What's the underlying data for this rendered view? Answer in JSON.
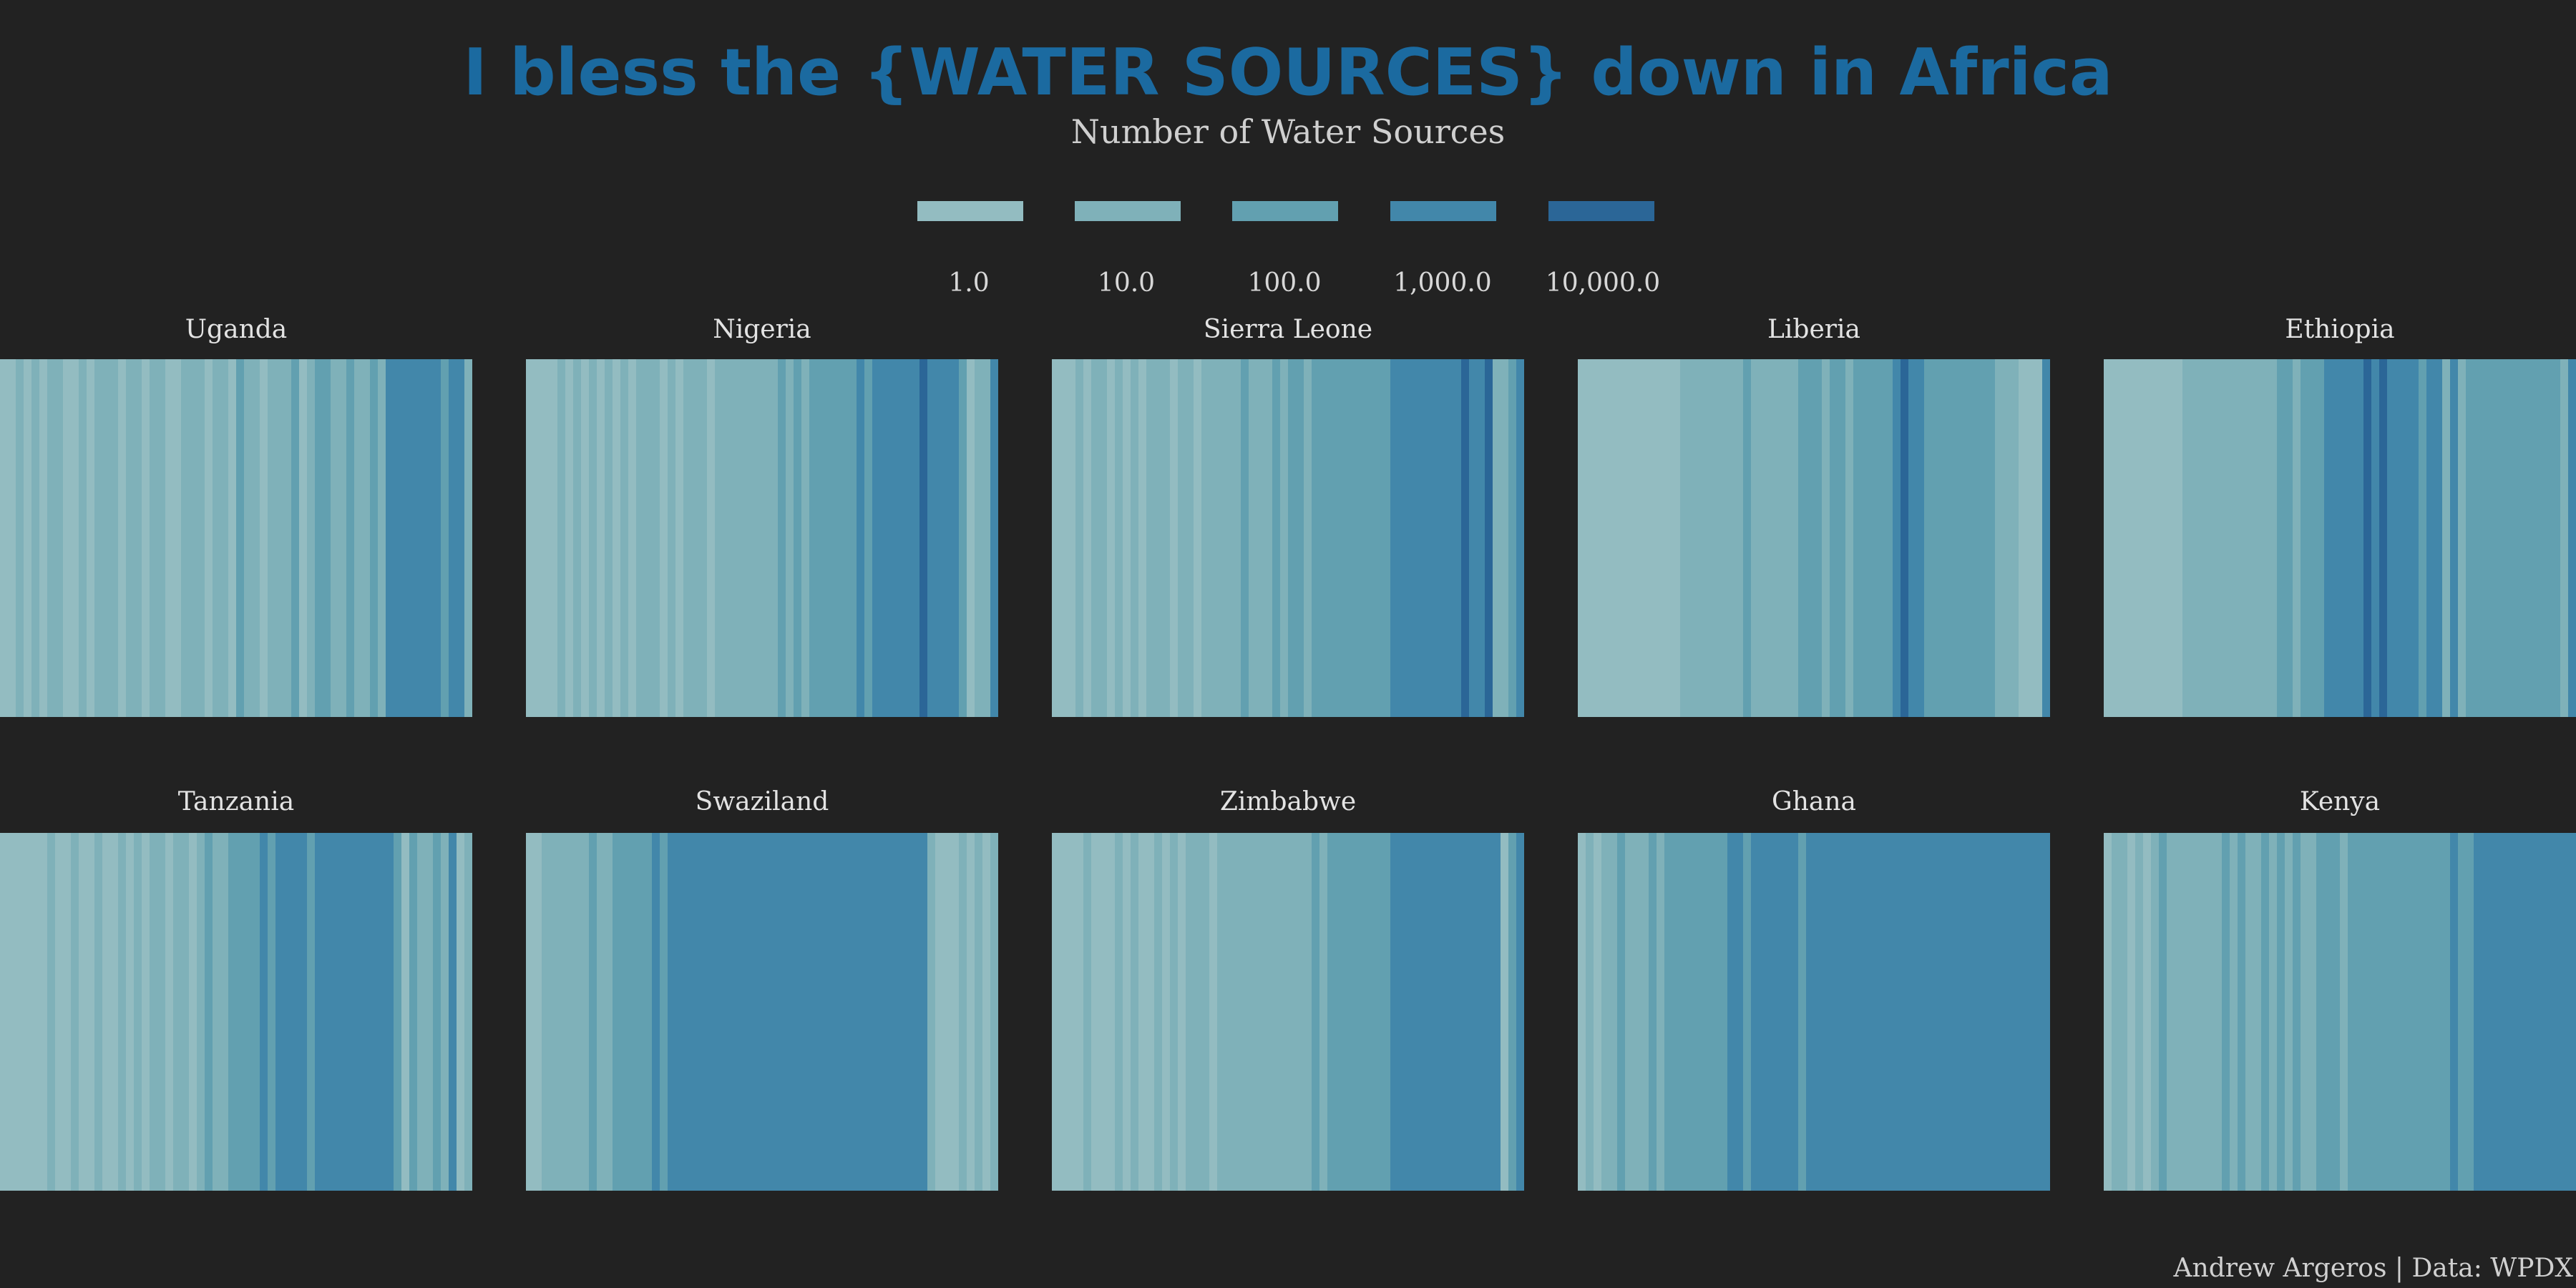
{
  "title": "I bless the {WATER SOURCES} down in Africa",
  "caption": "Andrew Argeros | Data: WPDX",
  "colors": {
    "background": "#222222",
    "title": "#1b6aa0",
    "scale": [
      "#93bcc1",
      "#7fb1b9",
      "#62a0b0",
      "#4287aa",
      "#2b6697"
    ]
  },
  "chart_data": {
    "type": "heatmap",
    "subtitle": "Number of Water Sources",
    "legend": {
      "title": "Number of Water Sources",
      "placement": "top",
      "scale": "log",
      "breaks": [
        "1.0",
        "10.0",
        "100.0",
        "1,000.0",
        "10,000.0"
      ]
    },
    "grid": false,
    "facets": [
      {
        "name": "Uganda",
        "counts": [
          3,
          1,
          8,
          1,
          12,
          2,
          6,
          15,
          3,
          2,
          9,
          1,
          4,
          10,
          6,
          2,
          20,
          5,
          1,
          7,
          12,
          3,
          2,
          10,
          30,
          6,
          3,
          7,
          14,
          3,
          50,
          8,
          22,
          1,
          9,
          12,
          4,
          35,
          2,
          18,
          60,
          40,
          7,
          15,
          80,
          25,
          5,
          120,
          30,
          2000,
          900,
          600,
          1500,
          3000,
          2000,
          800,
          50,
          600,
          400,
          8
        ]
      },
      {
        "name": "Nigeria",
        "counts": [
          2,
          1,
          3,
          1,
          5,
          2,
          4,
          1,
          6,
          3,
          8,
          2,
          5,
          1,
          9,
          4,
          12,
          3,
          7,
          2,
          15,
          5,
          10,
          3,
          18,
          6,
          25,
          4,
          14,
          8,
          30,
          6,
          45,
          10,
          35,
          8,
          60,
          40,
          120,
          70,
          300,
          180,
          500,
          250,
          700,
          400,
          900,
          600,
          1200,
          800,
          3500,
          1000,
          2500,
          2000,
          3000,
          50,
          3,
          5,
          4,
          1500
        ]
      },
      {
        "name": "Sierra Leone",
        "counts": [
          1,
          3,
          2,
          12,
          1,
          4,
          8,
          2,
          25,
          3,
          6,
          1,
          15,
          4,
          9,
          2,
          20,
          5,
          3,
          30,
          7,
          12,
          4,
          18,
          40,
          6,
          25,
          10,
          60,
          15,
          35,
          80,
          20,
          50,
          110,
          70,
          160,
          90,
          200,
          130,
          250,
          300,
          180,
          400,
          350,
          500,
          450,
          400,
          600,
          550,
          3000,
          2500,
          3500,
          3000,
          2800,
          3200,
          8,
          15,
          300,
          2000
        ]
      },
      {
        "name": "Liberia",
        "counts": [
          1,
          1,
          2,
          1,
          1,
          3,
          1,
          2,
          1,
          1,
          2,
          1,
          1,
          12,
          18,
          25,
          30,
          15,
          20,
          22,
          12,
          35,
          14,
          28,
          16,
          20,
          25,
          30,
          45,
          60,
          40,
          5,
          80,
          100,
          25,
          150,
          50,
          300,
          200,
          70,
          2500,
          3500,
          3000,
          2800,
          80,
          300,
          50,
          40,
          200,
          120,
          150,
          60,
          40,
          30,
          20,
          15,
          3,
          1,
          1,
          2000
        ]
      },
      {
        "name": "Ethiopia",
        "counts": [
          1,
          1,
          1,
          1,
          1,
          1,
          1,
          1,
          1,
          1,
          12,
          10,
          15,
          11,
          18,
          20,
          14,
          22,
          16,
          25,
          30,
          20,
          35,
          40,
          28,
          45,
          60,
          70,
          900,
          600,
          800,
          3000,
          2500,
          3500,
          2800,
          3200,
          3000,
          2600,
          2200,
          1500,
          300,
          1000,
          400,
          25,
          800,
          30,
          120,
          40,
          200,
          90,
          50,
          300,
          80,
          40,
          120,
          60,
          100,
          50,
          15,
          3000
        ]
      },
      {
        "name": "Tanzania",
        "counts": [
          1,
          2,
          1,
          3,
          1,
          2,
          4,
          1,
          2,
          6,
          1,
          3,
          8,
          2,
          1,
          10,
          3,
          5,
          2,
          12,
          4,
          1,
          6,
          15,
          3,
          9,
          40,
          20,
          25,
          60,
          120,
          300,
          250,
          350,
          280,
          400,
          320,
          450,
          380,
          300,
          420,
          350,
          500,
          380,
          450,
          400,
          500,
          2500,
          3000,
          2800,
          300,
          3,
          150,
          4,
          12,
          250,
          5,
          600,
          3,
          8
        ]
      },
      {
        "name": "Swaziland",
        "counts": [
          3,
          1,
          12,
          5,
          20,
          15,
          8,
          25,
          40,
          18,
          30,
          80,
          200,
          60,
          300,
          150,
          400,
          250,
          500,
          350,
          600,
          400,
          450,
          550,
          500,
          380,
          600,
          450,
          700,
          500,
          650,
          550,
          800,
          600,
          900,
          700,
          1000,
          800,
          2500,
          900,
          800,
          700,
          1000,
          800,
          900,
          2500,
          3000,
          2200,
          700,
          1500,
          800,
          5,
          2,
          3,
          1,
          8,
          2,
          4,
          1,
          6
        ]
      },
      {
        "name": "Zimbabwe",
        "counts": [
          1,
          3,
          1,
          2,
          5,
          1,
          3,
          2,
          4,
          1,
          6,
          2,
          3,
          8,
          2,
          5,
          3,
          10,
          4,
          6,
          3,
          12,
          5,
          15,
          8,
          4,
          20,
          10,
          25,
          6,
          15,
          12,
          30,
          40,
          25,
          50,
          35,
          60,
          45,
          80,
          60,
          100,
          300,
          400,
          350,
          500,
          400,
          450,
          500,
          420,
          550,
          480,
          500,
          450,
          600,
          500,
          550,
          3,
          200,
          2000
        ]
      },
      {
        "name": "Ghana",
        "counts": [
          2,
          5,
          3,
          12,
          4,
          60,
          8,
          20,
          15,
          40,
          25,
          60,
          150,
          80,
          200,
          120,
          300,
          250,
          200,
          400,
          350,
          300,
          450,
          400,
          500,
          1500,
          450,
          800,
          300,
          600,
          500,
          800,
          600,
          900,
          700,
          1000,
          900,
          1200,
          1000,
          1100,
          1200,
          1500,
          1300,
          2500,
          1800,
          3000,
          1100,
          1500,
          1300,
          1200,
          2000,
          3000,
          2500,
          2800,
          2600,
          1800,
          500,
          900,
          700,
          3000
        ]
      },
      {
        "name": "Kenya",
        "counts": [
          1,
          8,
          12,
          2,
          15,
          3,
          20,
          40,
          5,
          8,
          30,
          12,
          25,
          15,
          6,
          35,
          10,
          40,
          20,
          8,
          45,
          25,
          60,
          12,
          50,
          30,
          15,
          70,
          40,
          80,
          20,
          100,
          60,
          40,
          120,
          80,
          150,
          60,
          200,
          100,
          300,
          120,
          200,
          150,
          400,
          250,
          300,
          350,
          500,
          400,
          450,
          500,
          600,
          550,
          700,
          600,
          800,
          650,
          900,
          2500
        ]
      }
    ]
  }
}
